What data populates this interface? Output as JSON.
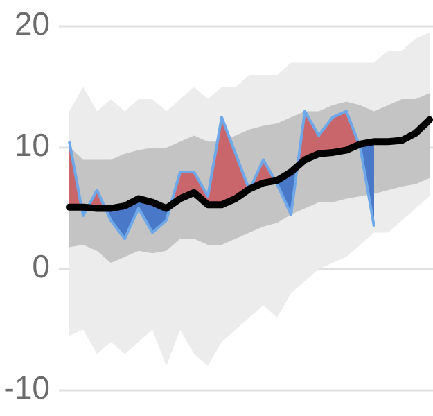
{
  "chart_data": {
    "type": "band-line",
    "ylim": [
      -10,
      20
    ],
    "yticks": [
      -10,
      0,
      10,
      20
    ],
    "grid": true,
    "series": [
      {
        "name": null,
        "kind": "band",
        "color": "#ececec",
        "lower": [
          -5.5,
          -5,
          -7,
          -6,
          -7,
          -6,
          -5,
          -8,
          -5,
          -7,
          -8,
          -6,
          -5,
          -4,
          -3,
          -4,
          -2,
          -1,
          0,
          0.5,
          1,
          2,
          3,
          3,
          4,
          5,
          6
        ],
        "upper": [
          13,
          15,
          13,
          14,
          13,
          14,
          14,
          13,
          14,
          15,
          14,
          15,
          15,
          16,
          16,
          16,
          17,
          17,
          17,
          17,
          17,
          17,
          17,
          18,
          18,
          19,
          19.5
        ]
      },
      {
        "name": null,
        "kind": "band",
        "color": "#c4c4c4",
        "lower": [
          1.8,
          2.0,
          1.5,
          0.5,
          1.0,
          1.5,
          1.3,
          1.5,
          2.5,
          2.5,
          2.0,
          2.0,
          2.5,
          3.0,
          3.5,
          3.8,
          4.5,
          5.0,
          5.5,
          5.5,
          5.8,
          6.0,
          6.2,
          6.5,
          6.8,
          7.0,
          7.5
        ],
        "upper": [
          10.1,
          9.0,
          9.0,
          9.0,
          9.5,
          9.8,
          10.0,
          10.0,
          10.5,
          11.0,
          10.5,
          10.5,
          11.0,
          11.5,
          11.8,
          12.0,
          12.5,
          13.0,
          13.0,
          13.5,
          13.8,
          13.5,
          13.0,
          13.5,
          14.0,
          14.0,
          14.5
        ]
      },
      {
        "name": null,
        "kind": "average",
        "color": "#000000",
        "values": [
          5.1,
          5.1,
          5.0,
          5.0,
          5.2,
          5.8,
          5.5,
          5.0,
          5.8,
          6.3,
          5.3,
          5.3,
          5.8,
          6.6,
          7.1,
          7.3,
          8.0,
          9.0,
          9.5,
          9.6,
          9.8,
          10.3,
          10.5,
          10.5,
          10.6,
          11.2,
          12.3
        ]
      },
      {
        "name": null,
        "kind": "actual",
        "color": "#6fa8e8",
        "above_color": "#c9666b",
        "below_color": "#4a78c8",
        "values": [
          10.5,
          4.4,
          6.5,
          4.0,
          2.5,
          5.0,
          3.0,
          4.0,
          8.0,
          8.0,
          6.0,
          12.5,
          9.5,
          6.5,
          9.0,
          7.0,
          4.5,
          13.0,
          11.0,
          12.5,
          13.0,
          10.0,
          3.5,
          null,
          null,
          null,
          null
        ]
      }
    ]
  }
}
